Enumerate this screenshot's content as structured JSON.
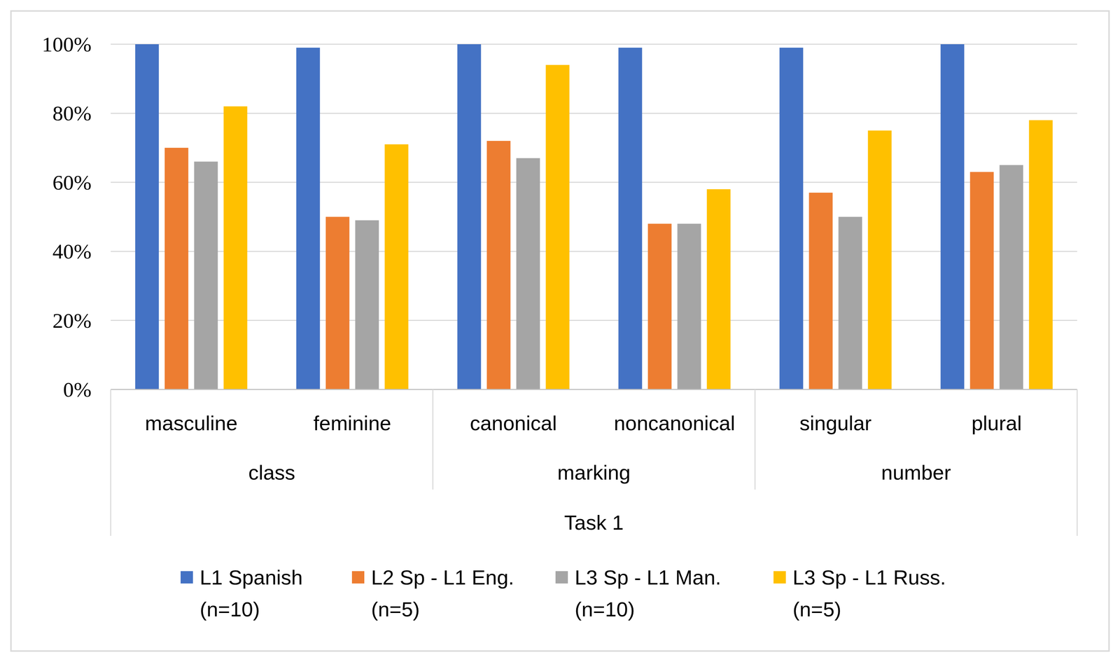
{
  "chart_data": {
    "type": "bar",
    "categories": [
      "masculine",
      "feminine",
      "canonical",
      "noncanonical",
      "singular",
      "plural"
    ],
    "category_groups": [
      {
        "label": "class",
        "categories": [
          "masculine",
          "feminine"
        ]
      },
      {
        "label": "marking",
        "categories": [
          "canonical",
          "noncanonical"
        ]
      },
      {
        "label": "number",
        "categories": [
          "singular",
          "plural"
        ]
      }
    ],
    "xlabel": "Task 1",
    "series": [
      {
        "name": "L1 Spanish (n=10)",
        "color": "#4472c4",
        "values": [
          100,
          99,
          100,
          99,
          99,
          100
        ]
      },
      {
        "name": "L2 Sp - L1 Eng. (n=5)",
        "color": "#ed7d31",
        "values": [
          70,
          50,
          72,
          48,
          57,
          63
        ]
      },
      {
        "name": "L3 Sp - L1 Man. (n=10)",
        "color": "#a5a5a5",
        "values": [
          66,
          49,
          67,
          48,
          50,
          65
        ]
      },
      {
        "name": "L3 Sp - L1 Russ. (n=5)",
        "color": "#ffc000",
        "values": [
          82,
          71,
          94,
          58,
          75,
          78
        ]
      }
    ],
    "ylim": [
      0,
      100
    ],
    "yticks": [
      {
        "value": 0,
        "label": "0%"
      },
      {
        "value": 20,
        "label": "20%"
      },
      {
        "value": 40,
        "label": "40%"
      },
      {
        "value": 60,
        "label": "60%"
      },
      {
        "value": 80,
        "label": "80%"
      },
      {
        "value": 100,
        "label": "100%"
      }
    ],
    "grid": true,
    "legend": "bottom"
  }
}
